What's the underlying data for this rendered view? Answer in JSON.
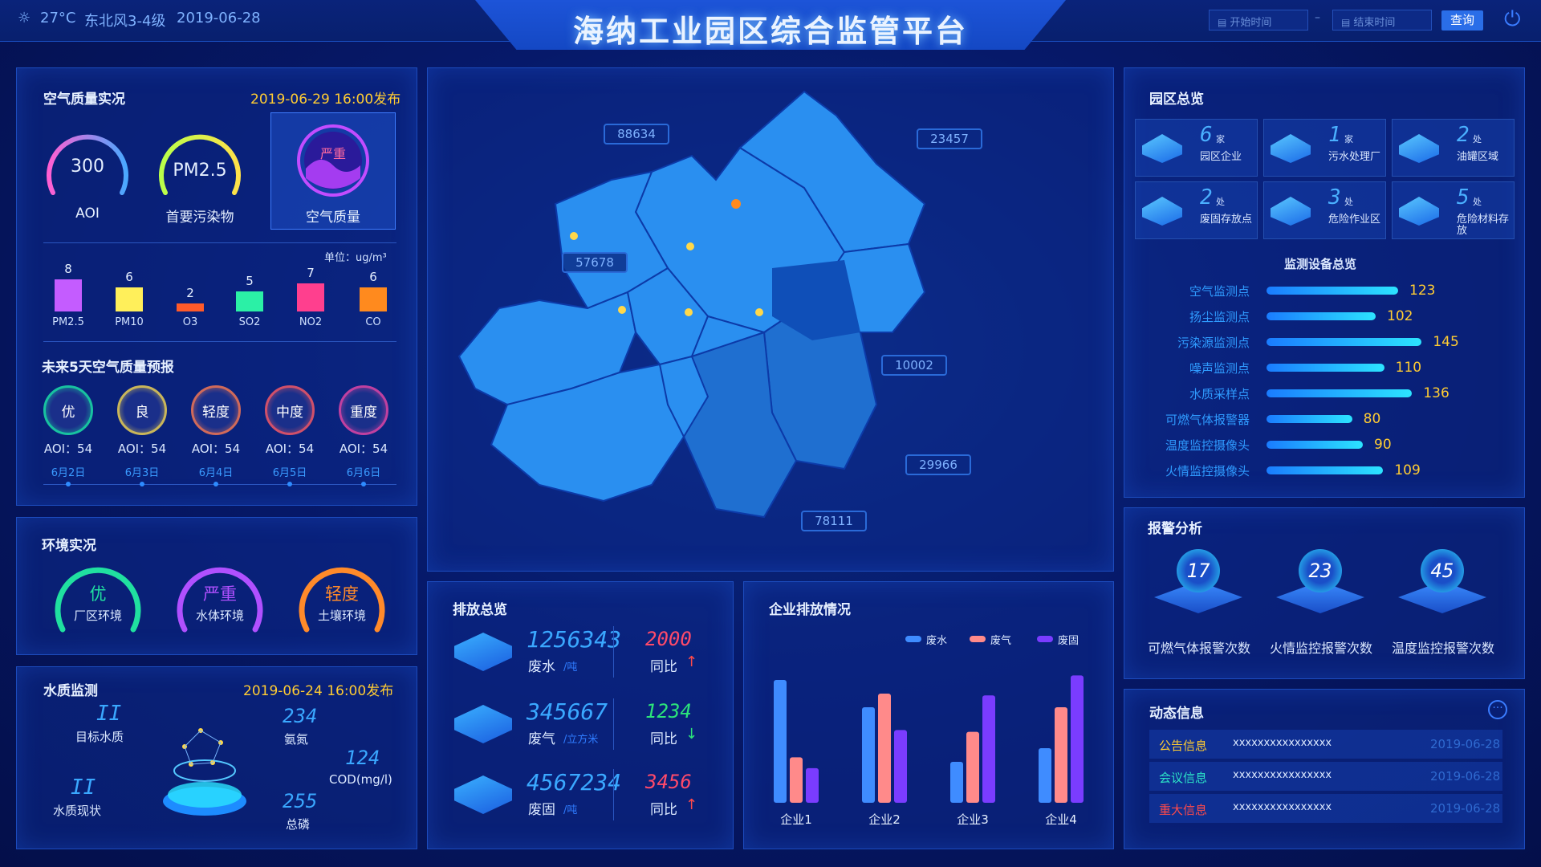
{
  "header": {
    "title": "海纳工业园区综合监管平台",
    "temperature": "27°C",
    "wind": "东北风3-4级",
    "date": "2019-06-28",
    "start_placeholder": "开始时间",
    "separator": "–",
    "end_placeholder": "结束时间",
    "query_label": "查询"
  },
  "air_quality": {
    "title": "空气质量实况",
    "published": "2019-06-29 16:00发布",
    "aoi_value": "300",
    "aoi_label": "AOI",
    "pollutant_value": "PM2.5",
    "pollutant_label": "首要污染物",
    "quality_value": "严重",
    "quality_label": "空气质量",
    "unit": "单位：ug/m³",
    "pollutants": [
      {
        "name": "PM2.5",
        "value": 8,
        "color": "#c45cff"
      },
      {
        "name": "PM10",
        "value": 6,
        "color": "#ffef5a"
      },
      {
        "name": "O3",
        "value": 2,
        "color": "#ff5a2a"
      },
      {
        "name": "SO2",
        "value": 5,
        "color": "#2bf0a6"
      },
      {
        "name": "NO2",
        "value": 7,
        "color": "#ff3f8e"
      },
      {
        "name": "CO",
        "value": 6,
        "color": "#ff8a1e"
      }
    ]
  },
  "forecast": {
    "title": "未来5天空气质量预报",
    "days": [
      {
        "level": "优",
        "aoi": "AOI：54",
        "date": "6月2日",
        "color": "#18c2a0"
      },
      {
        "level": "良",
        "aoi": "AOI：54",
        "date": "6月3日",
        "color": "#c9b65a"
      },
      {
        "level": "轻度",
        "aoi": "AOI：54",
        "date": "6月4日",
        "color": "#d06a5a"
      },
      {
        "level": "中度",
        "aoi": "AOI：54",
        "date": "6月5日",
        "color": "#d0506a"
      },
      {
        "level": "重度",
        "aoi": "AOI：54",
        "date": "6月6日",
        "color": "#c040a0"
      }
    ]
  },
  "environment": {
    "title": "环境实况",
    "items": [
      {
        "level": "优",
        "name": "厂区环境",
        "color": "#20e0a0"
      },
      {
        "level": "严重",
        "name": "水体环境",
        "color": "#b050ff"
      },
      {
        "level": "轻度",
        "name": "土壤环境",
        "color": "#ff8a2a"
      }
    ]
  },
  "water": {
    "title": "水质监测",
    "published": "2019-06-24 16:00发布",
    "target_value": "II",
    "target_label": "目标水质",
    "current_value": "II",
    "current_label": "水质现状",
    "ammonia_value": "234",
    "ammonia_label": "氨氮",
    "cod_value": "124",
    "cod_label": "COD(mg/l)",
    "phosphorus_value": "255",
    "phosphorus_label": "总磷"
  },
  "map": {
    "callouts": [
      "88634",
      "23457",
      "57678",
      "10002",
      "29966",
      "78111"
    ]
  },
  "emission": {
    "title": "排放总览",
    "yoy_label": "同比",
    "rows": [
      {
        "value": "1256343",
        "name": "废水",
        "unit": "/吨",
        "yoy": "2000",
        "trend": "up"
      },
      {
        "value": "345667",
        "name": "废气",
        "unit": "/立方米",
        "yoy": "1234",
        "trend": "down"
      },
      {
        "value": "4567234",
        "name": "废固",
        "unit": "/吨",
        "yoy": "3456",
        "trend": "up"
      }
    ]
  },
  "enterprise": {
    "title": "企业排放情况",
    "legend": [
      "废水",
      "废气",
      "废固"
    ]
  },
  "chart_data": {
    "type": "bar",
    "title": "企业排放情况",
    "categories": [
      "企业1",
      "企业2",
      "企业3",
      "企业4"
    ],
    "series": [
      {
        "name": "废水",
        "values": [
          135,
          105,
          45,
          60
        ],
        "color": "#3f8cff"
      },
      {
        "name": "废气",
        "values": [
          50,
          120,
          78,
          105
        ],
        "color": "#ff8a8a"
      },
      {
        "name": "废固",
        "values": [
          38,
          80,
          118,
          140
        ],
        "color": "#7a3cff"
      }
    ],
    "ylim": [
      0,
      150
    ],
    "legend_position": "top-right",
    "grid": false
  },
  "park": {
    "title": "园区总览",
    "cells": [
      {
        "value": "6",
        "unit": "家",
        "name": "园区企业"
      },
      {
        "value": "1",
        "unit": "家",
        "name": "污水处理厂"
      },
      {
        "value": "2",
        "unit": "处",
        "name": "油罐区域"
      },
      {
        "value": "2",
        "unit": "处",
        "name": "废固存放点"
      },
      {
        "value": "3",
        "unit": "处",
        "name": "危险作业区"
      },
      {
        "value": "5",
        "unit": "处",
        "name": "危险材料存放"
      }
    ]
  },
  "monitoring": {
    "title": "监测设备总览",
    "max": 150,
    "items": [
      {
        "name": "空气监测点",
        "value": 123
      },
      {
        "name": "扬尘监测点",
        "value": 102
      },
      {
        "name": "污染源监测点",
        "value": 145
      },
      {
        "name": "噪声监测点",
        "value": 110
      },
      {
        "name": "水质采样点",
        "value": 136
      },
      {
        "name": "可燃气体报警器",
        "value": 80
      },
      {
        "name": "温度监控摄像头",
        "value": 90
      },
      {
        "name": "火情监控摄像头",
        "value": 109
      }
    ]
  },
  "alarm": {
    "title": "报警分析",
    "items": [
      {
        "value": "17",
        "name": "可燃气体报警次数"
      },
      {
        "value": "23",
        "name": "火情监控报警次数"
      },
      {
        "value": "45",
        "name": "温度监控报警次数"
      }
    ]
  },
  "news": {
    "title": "动态信息",
    "rows": [
      {
        "type": "公告信息",
        "content": "xxxxxxxxxxxxxxxx",
        "date": "2019-06-28",
        "color": "#ffcc33"
      },
      {
        "type": "会议信息",
        "content": "xxxxxxxxxxxxxxxx",
        "date": "2019-06-28",
        "color": "#2ce4c8"
      },
      {
        "type": "重大信息",
        "content": "xxxxxxxxxxxxxxxx",
        "date": "2019-06-28",
        "color": "#ff4a4a"
      }
    ]
  }
}
